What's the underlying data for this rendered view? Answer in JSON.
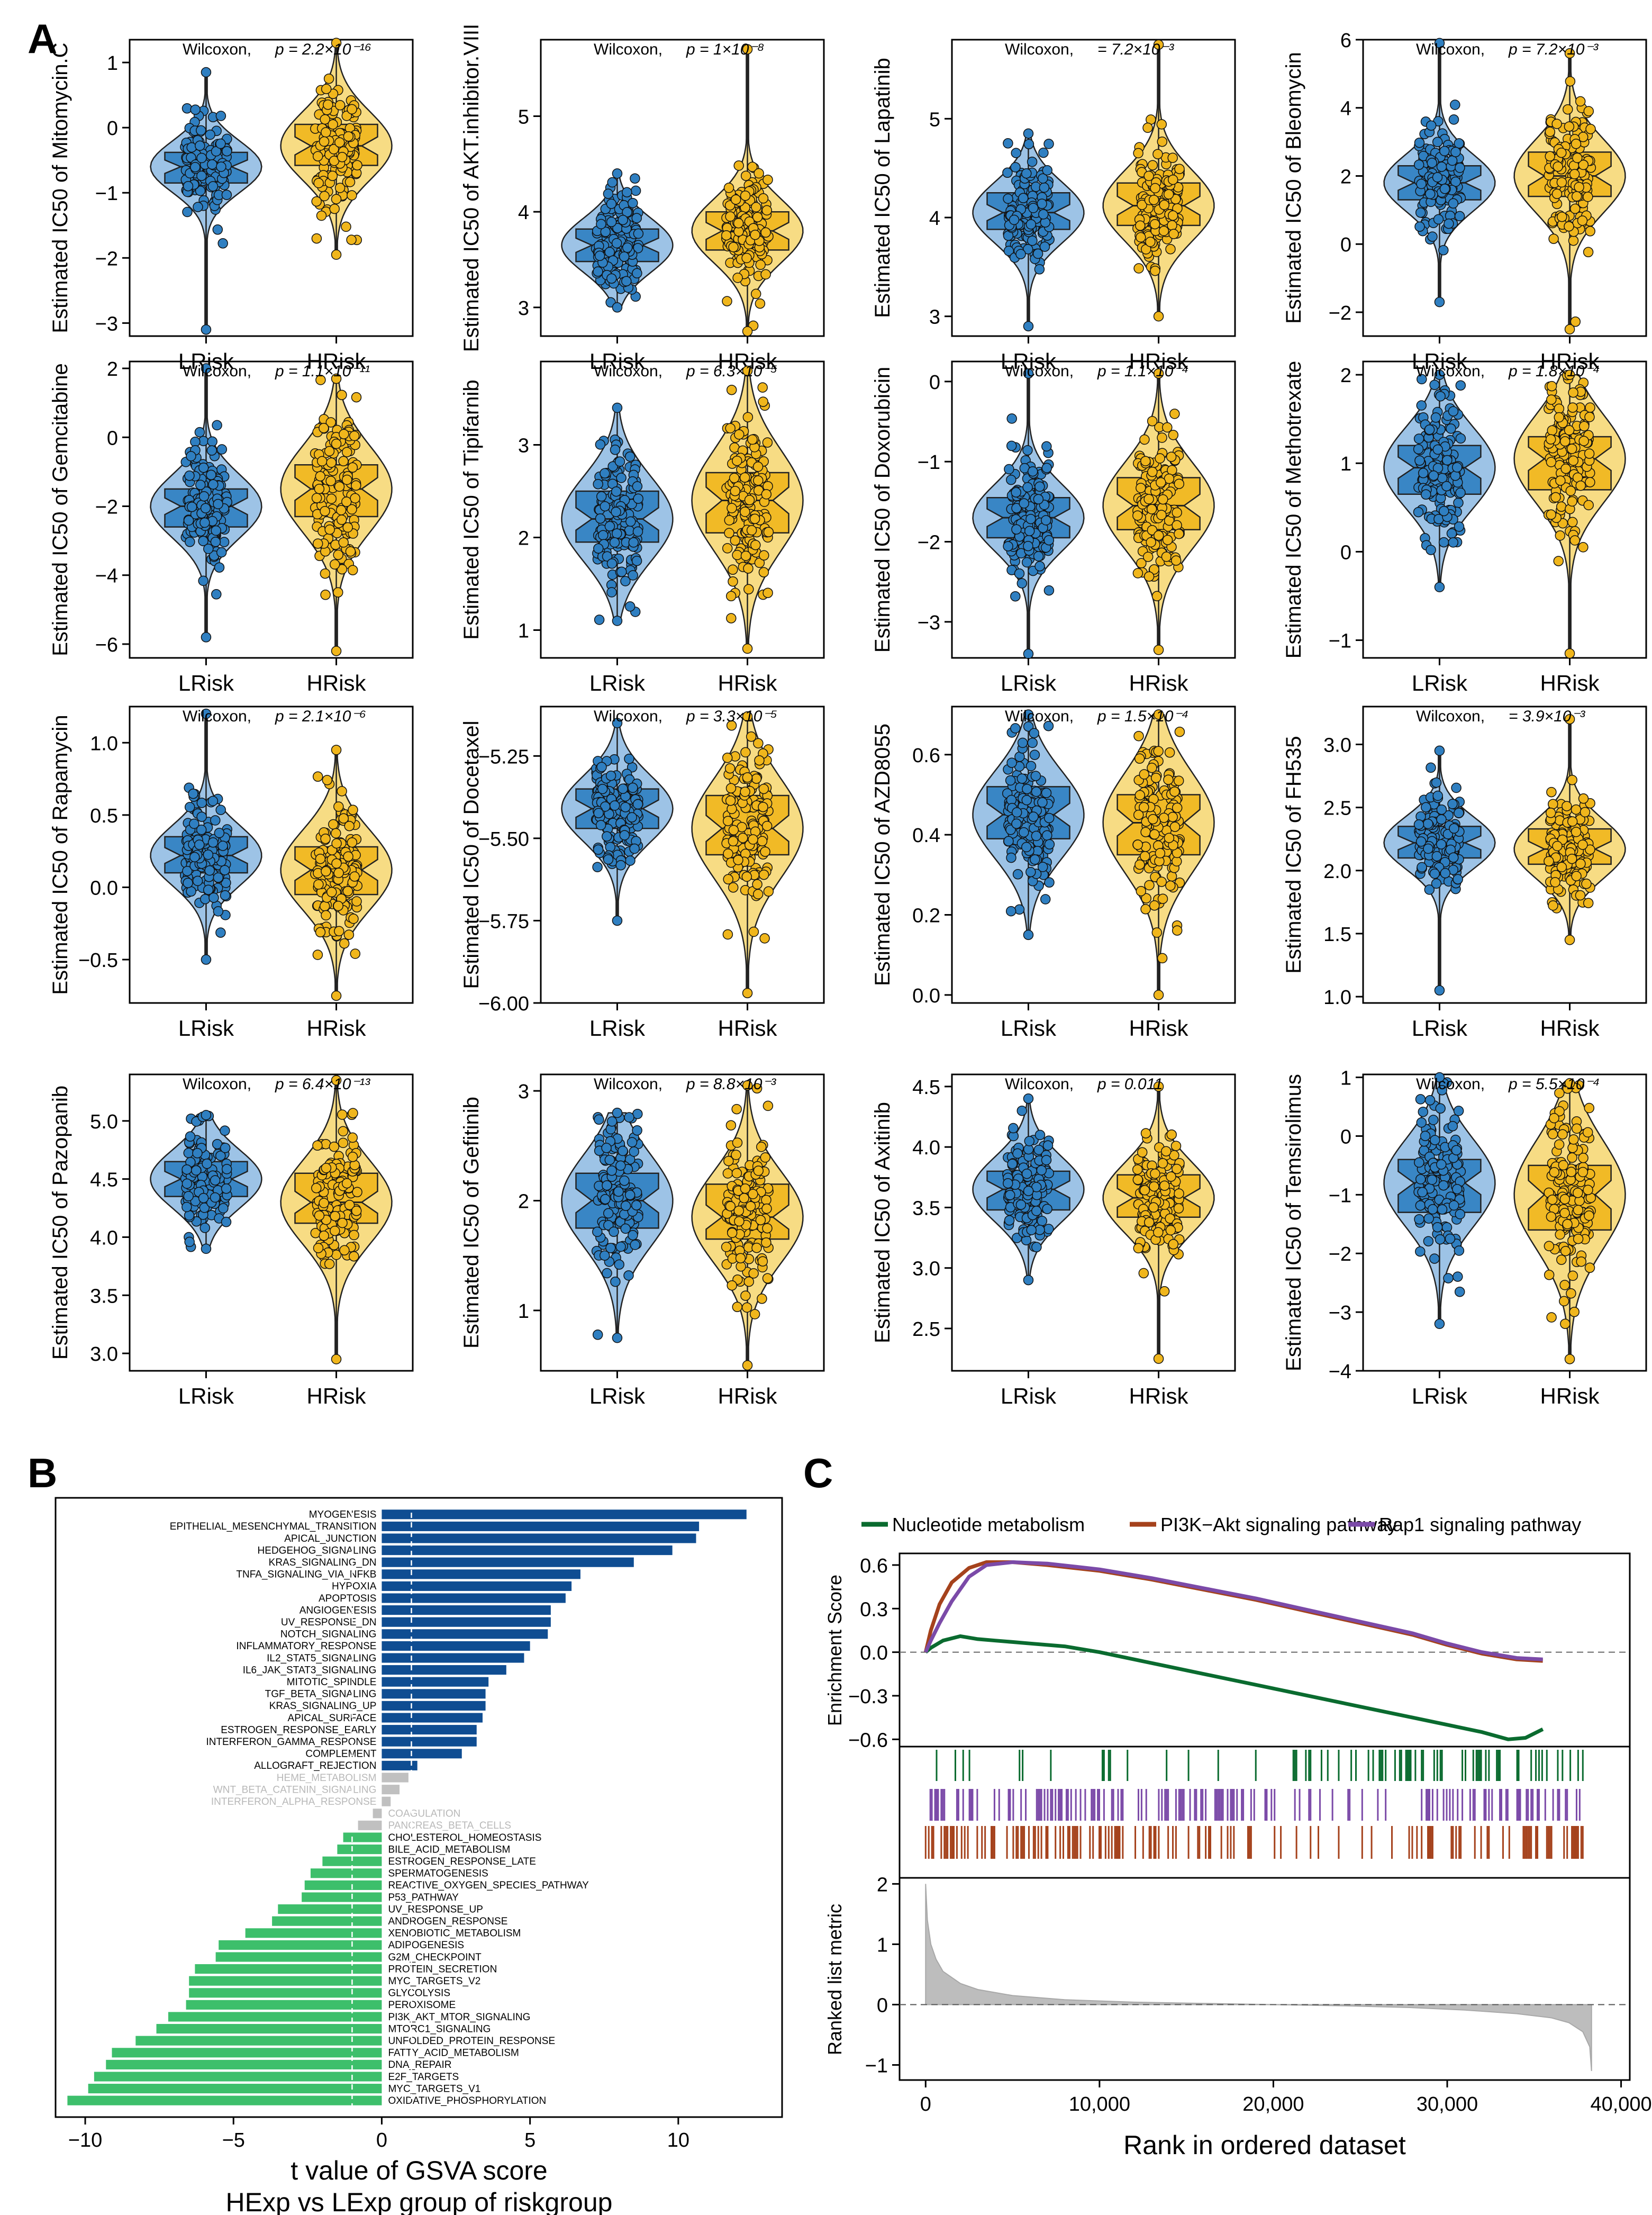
{
  "panel_labels": {
    "a": "A",
    "b": "B",
    "c": "C"
  },
  "colors": {
    "low": "#2f7fc1",
    "high": "#f0b61c",
    "low_fill": "#9dc3e6",
    "high_fill": "#f7dc84",
    "up_bar": "#0f4d92",
    "down_bar": "#3dbf6b",
    "ns_bar": "#c0c0c0",
    "gsea_nucleotide": "#0a6b2f",
    "gsea_pi3k": "#a5421c",
    "gsea_rap1": "#7b4aa8"
  },
  "chart_data": [
    {
      "type": "violin-box",
      "drug": "Mitomycin.C",
      "ylabel": "Estimated IC50 of Mitomycin.C",
      "ylim": [
        -3.2,
        1.35
      ],
      "yticks": [
        -3,
        -2,
        -1,
        0,
        1
      ],
      "categories": [
        "LRisk",
        "HRisk"
      ],
      "test": "Wilcoxon,",
      "pvalue": "p = 2.2×10⁻¹⁶",
      "low": {
        "q1": -0.85,
        "median": -0.6,
        "q3": -0.38,
        "min": -3.1,
        "max": 0.85
      },
      "high": {
        "q1": -0.58,
        "median": -0.28,
        "q3": 0.05,
        "min": -1.95,
        "max": 1.3
      }
    },
    {
      "type": "violin-box",
      "drug": "AKT.inhibitor.VIII",
      "ylabel": "Estimated IC50 of AKT.inhibitor.VIII",
      "ylim": [
        2.7,
        5.8
      ],
      "yticks": [
        3,
        4,
        5
      ],
      "categories": [
        "LRisk",
        "HRisk"
      ],
      "test": "Wilcoxon,",
      "pvalue": "p = 1×10⁻⁸",
      "low": {
        "q1": 3.48,
        "median": 3.65,
        "q3": 3.82,
        "min": 3.0,
        "max": 4.4
      },
      "high": {
        "q1": 3.6,
        "median": 3.8,
        "q3": 4.0,
        "min": 2.75,
        "max": 5.7
      }
    },
    {
      "type": "violin-box",
      "drug": "Lapatinib",
      "ylabel": "Estimated IC50 of Lapatinib",
      "ylim": [
        2.8,
        5.8
      ],
      "yticks": [
        3,
        4,
        5
      ],
      "categories": [
        "LRisk",
        "HRisk"
      ],
      "test": "Wilcoxon,",
      "pvalue": "= 7.2×10⁻³",
      "low": {
        "q1": 3.88,
        "median": 4.05,
        "q3": 4.25,
        "min": 2.9,
        "max": 4.85
      },
      "high": {
        "q1": 3.92,
        "median": 4.12,
        "q3": 4.35,
        "min": 3.0,
        "max": 5.75
      }
    },
    {
      "type": "violin-box",
      "drug": "Bleomycin",
      "ylabel": "Estimated IC50 of Bleomycin",
      "ylim": [
        -2.7,
        6.0
      ],
      "yticks": [
        -2,
        0,
        2,
        4,
        6
      ],
      "categories": [
        "LRisk",
        "HRisk"
      ],
      "test": "Wilcoxon,",
      "pvalue": "p = 7.2×10⁻³",
      "low": {
        "q1": 1.3,
        "median": 1.8,
        "q3": 2.3,
        "min": -1.7,
        "max": 5.9
      },
      "high": {
        "q1": 1.4,
        "median": 2.0,
        "q3": 2.7,
        "min": -2.5,
        "max": 5.6
      }
    },
    {
      "type": "violin-box",
      "drug": "Gemcitabine",
      "ylabel": "Estimated IC50 of Gemcitabine",
      "ylim": [
        -6.4,
        2.2
      ],
      "yticks": [
        -6,
        -4,
        -2,
        0,
        2
      ],
      "categories": [
        "LRisk",
        "HRisk"
      ],
      "test": "Wilcoxon,",
      "pvalue": "p = 1.1×10⁻¹¹",
      "low": {
        "q1": -2.6,
        "median": -2.0,
        "q3": -1.5,
        "min": -5.8,
        "max": 2.0
      },
      "high": {
        "q1": -2.3,
        "median": -1.5,
        "q3": -0.8,
        "min": -6.2,
        "max": 1.7
      }
    },
    {
      "type": "violin-box",
      "drug": "Tipifarnib",
      "ylabel": "Estimated IC50 of Tipifarnib",
      "ylim": [
        0.7,
        3.9
      ],
      "yticks": [
        1,
        2,
        3
      ],
      "categories": [
        "LRisk",
        "HRisk"
      ],
      "test": "Wilcoxon,",
      "pvalue": "p = 6.3×10⁻⁵",
      "low": {
        "q1": 1.95,
        "median": 2.2,
        "q3": 2.5,
        "min": 1.1,
        "max": 3.4
      },
      "high": {
        "q1": 2.05,
        "median": 2.4,
        "q3": 2.7,
        "min": 0.8,
        "max": 3.8
      }
    },
    {
      "type": "violin-box",
      "drug": "Doxorubicin",
      "ylabel": "Estimated IC50 of Doxorubicin",
      "ylim": [
        -3.45,
        0.25
      ],
      "yticks": [
        -3,
        -2,
        -1,
        0
      ],
      "categories": [
        "LRisk",
        "HRisk"
      ],
      "test": "Wilcoxon,",
      "pvalue": "p = 1.1×10⁻⁴",
      "low": {
        "q1": -1.95,
        "median": -1.7,
        "q3": -1.45,
        "min": -3.4,
        "max": 0.1
      },
      "high": {
        "q1": -1.85,
        "median": -1.55,
        "q3": -1.2,
        "min": -3.35,
        "max": 0.1
      }
    },
    {
      "type": "violin-box",
      "drug": "Methotrexate",
      "ylabel": "Estimated IC50 of Methotrexate",
      "ylim": [
        -1.2,
        2.15
      ],
      "yticks": [
        -1,
        0,
        1,
        2
      ],
      "categories": [
        "LRisk",
        "HRisk"
      ],
      "test": "Wilcoxon,",
      "pvalue": "p = 1.8×10⁻⁴",
      "low": {
        "q1": 0.65,
        "median": 0.95,
        "q3": 1.2,
        "min": -0.4,
        "max": 2.0
      },
      "high": {
        "q1": 0.7,
        "median": 1.05,
        "q3": 1.3,
        "min": -1.15,
        "max": 2.0
      }
    },
    {
      "type": "violin-box",
      "drug": "Rapamycin",
      "ylabel": "Estimated IC50 of Rapamycin",
      "ylim": [
        -0.8,
        1.25
      ],
      "yticks": [
        -0.5,
        0.0,
        0.5,
        1.0
      ],
      "categories": [
        "LRisk",
        "HRisk"
      ],
      "test": "Wilcoxon,",
      "pvalue": "p = 2.1×10⁻⁶",
      "low": {
        "q1": 0.1,
        "median": 0.22,
        "q3": 0.35,
        "min": -0.5,
        "max": 1.2
      },
      "high": {
        "q1": -0.05,
        "median": 0.12,
        "q3": 0.28,
        "min": -0.75,
        "max": 0.95
      }
    },
    {
      "type": "violin-box",
      "drug": "Docetaxel",
      "ylabel": "Estimated IC50 of Docetaxel",
      "ylim": [
        -6.0,
        -5.1
      ],
      "yticks": [
        -6.0,
        -5.75,
        -5.5,
        -5.25
      ],
      "categories": [
        "LRisk",
        "HRisk"
      ],
      "test": "Wilcoxon,",
      "pvalue": "p = 3.3×10⁻⁵",
      "low": {
        "q1": -5.47,
        "median": -5.41,
        "q3": -5.35,
        "min": -5.75,
        "max": -5.15
      },
      "high": {
        "q1": -5.55,
        "median": -5.47,
        "q3": -5.37,
        "min": -5.97,
        "max": -5.13
      }
    },
    {
      "type": "violin-box",
      "drug": "AZD8055",
      "ylabel": "Estimated IC50 of AZD8055",
      "ylim": [
        -0.02,
        0.72
      ],
      "yticks": [
        0.0,
        0.2,
        0.4,
        0.6
      ],
      "categories": [
        "LRisk",
        "HRisk"
      ],
      "test": "Wilcoxon,",
      "pvalue": "p = 1.5×10⁻⁴",
      "low": {
        "q1": 0.39,
        "median": 0.45,
        "q3": 0.52,
        "min": 0.15,
        "max": 0.7
      },
      "high": {
        "q1": 0.35,
        "median": 0.43,
        "q3": 0.5,
        "min": 0.0,
        "max": 0.7
      }
    },
    {
      "type": "violin-box",
      "drug": "FH535",
      "ylabel": "Estimated IC50 of FH535",
      "ylim": [
        0.95,
        3.3
      ],
      "yticks": [
        1.0,
        1.5,
        2.0,
        2.5,
        3.0
      ],
      "categories": [
        "LRisk",
        "HRisk"
      ],
      "test": "Wilcoxon,",
      "pvalue": "= 3.9×10⁻³",
      "low": {
        "q1": 2.1,
        "median": 2.22,
        "q3": 2.35,
        "min": 1.05,
        "max": 2.95
      },
      "high": {
        "q1": 2.05,
        "median": 2.17,
        "q3": 2.33,
        "min": 1.45,
        "max": 3.2
      }
    },
    {
      "type": "violin-box",
      "drug": "Pazopanib",
      "ylabel": "Estimated IC50 of Pazopanib",
      "ylim": [
        2.85,
        5.4
      ],
      "yticks": [
        3.0,
        3.5,
        4.0,
        4.5,
        5.0
      ],
      "categories": [
        "LRisk",
        "HRisk"
      ],
      "test": "Wilcoxon,",
      "pvalue": "p = 6.4×10⁻¹³",
      "low": {
        "q1": 4.35,
        "median": 4.5,
        "q3": 4.65,
        "min": 3.9,
        "max": 5.05
      },
      "high": {
        "q1": 4.12,
        "median": 4.3,
        "q3": 4.55,
        "min": 2.95,
        "max": 5.35
      }
    },
    {
      "type": "violin-box",
      "drug": "Gefitinib",
      "ylabel": "Estimated IC50 of Gefitinib",
      "ylim": [
        0.45,
        3.15
      ],
      "yticks": [
        1,
        2,
        3
      ],
      "categories": [
        "LRisk",
        "HRisk"
      ],
      "test": "Wilcoxon,",
      "pvalue": "p = 8.8×10⁻³",
      "low": {
        "q1": 1.75,
        "median": 2.0,
        "q3": 2.25,
        "min": 0.75,
        "max": 2.8
      },
      "high": {
        "q1": 1.65,
        "median": 1.85,
        "q3": 2.15,
        "min": 0.5,
        "max": 3.05
      }
    },
    {
      "type": "violin-box",
      "drug": "Axitinib",
      "ylabel": "Estimated IC50 of Axitinib",
      "ylim": [
        2.15,
        4.6
      ],
      "yticks": [
        2.5,
        3.0,
        3.5,
        4.0,
        4.5
      ],
      "categories": [
        "LRisk",
        "HRisk"
      ],
      "test": "Wilcoxon,",
      "pvalue": "p = 0.011",
      "low": {
        "q1": 3.48,
        "median": 3.65,
        "q3": 3.8,
        "min": 2.9,
        "max": 4.4
      },
      "high": {
        "q1": 3.42,
        "median": 3.58,
        "q3": 3.77,
        "min": 2.25,
        "max": 4.5
      }
    },
    {
      "type": "violin-box",
      "drug": "Temsirolimus",
      "ylabel": "Estimated IC50 of Temsirolimus",
      "ylim": [
        -4.0,
        1.05
      ],
      "yticks": [
        -4,
        -3,
        -2,
        -1,
        0,
        1
      ],
      "categories": [
        "LRisk",
        "HRisk"
      ],
      "test": "Wilcoxon,",
      "pvalue": "p = 5.5×10⁻⁴",
      "low": {
        "q1": -1.3,
        "median": -0.8,
        "q3": -0.4,
        "min": -3.2,
        "max": 1.0
      },
      "high": {
        "q1": -1.6,
        "median": -1.0,
        "q3": -0.5,
        "min": -3.8,
        "max": 0.9
      }
    },
    {
      "type": "bar-horizontal",
      "id": "gsva",
      "xlabel": "t value of GSVA score",
      "xlabel2": "HExp vs LExp group of riskgroup",
      "xlim": [
        -11,
        13.5
      ],
      "xticks": [
        -10,
        -5,
        0,
        5,
        10
      ],
      "threshold": [
        -1,
        1
      ],
      "categories": [
        "MYOGENESIS",
        "EPITHELIAL_MESENCHYMAL_TRANSITION",
        "APICAL_JUNCTION",
        "HEDGEHOG_SIGNALING",
        "KRAS_SIGNALING_DN",
        "TNFA_SIGNALING_VIA_NFKB",
        "HYPOXIA",
        "APOPTOSIS",
        "ANGIOGENESIS",
        "UV_RESPONSE_DN",
        "NOTCH_SIGNALING",
        "INFLAMMATORY_RESPONSE",
        "IL2_STAT5_SIGNALING",
        "IL6_JAK_STAT3_SIGNALING",
        "MITOTIC_SPINDLE",
        "TGF_BETA_SIGNALING",
        "KRAS_SIGNALING_UP",
        "APICAL_SURFACE",
        "ESTROGEN_RESPONSE_EARLY",
        "INTERFERON_GAMMA_RESPONSE",
        "COMPLEMENT",
        "ALLOGRAFT_REJECTION",
        "HEME_METABOLISM",
        "WNT_BETA_CATENIN_SIGNALING",
        "INTERFERON_ALPHA_RESPONSE",
        "COAGULATION",
        "PANCREAS_BETA_CELLS",
        "CHOLESTEROL_HOMEOSTASIS",
        "BILE_ACID_METABOLISM",
        "ESTROGEN_RESPONSE_LATE",
        "SPERMATOGENESIS",
        "REACTIVE_OXYGEN_SPECIES_PATHWAY",
        "P53_PATHWAY",
        "UV_RESPONSE_UP",
        "ANDROGEN_RESPONSE",
        "XENOBIOTIC_METABOLISM",
        "ADIPOGENESIS",
        "G2M_CHECKPOINT",
        "PROTEIN_SECRETION",
        "MYC_TARGETS_V2",
        "GLYCOLYSIS",
        "PEROXISOME",
        "PI3K_AKT_MTOR_SIGNALING",
        "MTORC1_SIGNALING",
        "UNFOLDED_PROTEIN_RESPONSE",
        "FATTY_ACID_METABOLISM",
        "DNA_REPAIR",
        "E2F_TARGETS",
        "MYC_TARGETS_V1",
        "OXIDATIVE_PHOSPHORYLATION"
      ],
      "values": [
        12.3,
        10.7,
        10.6,
        9.8,
        8.5,
        6.7,
        6.4,
        6.2,
        5.7,
        5.7,
        5.6,
        5.0,
        4.8,
        4.2,
        3.6,
        3.5,
        3.5,
        3.4,
        3.2,
        3.2,
        2.7,
        1.2,
        0.9,
        0.6,
        0.3,
        -0.3,
        -0.8,
        -1.3,
        -1.5,
        -2.0,
        -2.4,
        -2.6,
        -2.7,
        -3.5,
        -3.7,
        -4.6,
        -5.5,
        -5.6,
        -6.3,
        -6.5,
        -6.5,
        -6.6,
        -7.2,
        -7.6,
        -8.3,
        -9.1,
        -9.3,
        -9.7,
        -9.9,
        -10.6
      ]
    },
    {
      "type": "line",
      "id": "gsea-es",
      "ylabel": "Enrichment Score",
      "ylim": [
        -0.65,
        0.68
      ],
      "yticks": [
        -0.6,
        -0.3,
        0.0,
        0.3,
        0.6
      ],
      "series": [
        {
          "name": "Nucleotide metabolism",
          "x": [
            0,
            300,
            1000,
            2000,
            3000,
            4000,
            5000,
            6000,
            8000,
            10000,
            12000,
            14000,
            16000,
            18000,
            20000,
            22000,
            24000,
            26000,
            28000,
            30000,
            32000,
            33500,
            34500,
            35500
          ],
          "values": [
            0,
            0.03,
            0.08,
            0.11,
            0.09,
            0.08,
            0.07,
            0.06,
            0.04,
            0.0,
            -0.05,
            -0.1,
            -0.15,
            -0.2,
            -0.25,
            -0.3,
            -0.35,
            -0.4,
            -0.45,
            -0.5,
            -0.55,
            -0.6,
            -0.59,
            -0.53
          ]
        },
        {
          "name": "PI3K−Akt signaling pathway",
          "x": [
            0,
            300,
            800,
            1500,
            2500,
            3500,
            5000,
            7000,
            10000,
            13000,
            16000,
            19000,
            22000,
            25000,
            28000,
            30000,
            32000,
            34000,
            35500
          ],
          "values": [
            0,
            0.15,
            0.33,
            0.48,
            0.58,
            0.62,
            0.62,
            0.6,
            0.56,
            0.5,
            0.43,
            0.36,
            0.28,
            0.2,
            0.12,
            0.05,
            -0.01,
            -0.05,
            -0.06
          ]
        },
        {
          "name": "Rap1 signaling pathway",
          "x": [
            0,
            300,
            800,
            1500,
            2500,
            3500,
            5000,
            7000,
            10000,
            13000,
            16000,
            19000,
            22000,
            25000,
            28000,
            30000,
            32000,
            34000,
            35500
          ],
          "values": [
            0,
            0.08,
            0.2,
            0.35,
            0.52,
            0.6,
            0.62,
            0.61,
            0.57,
            0.51,
            0.44,
            0.37,
            0.29,
            0.21,
            0.13,
            0.06,
            0.0,
            -0.04,
            -0.05
          ]
        }
      ]
    },
    {
      "type": "area",
      "id": "gsea-rank",
      "ylabel": "Ranked list metric",
      "xlabel": "Rank in ordered dataset",
      "xlim": [
        -1500,
        40500
      ],
      "xticks": [
        0,
        10000,
        20000,
        30000,
        40000
      ],
      "xtick_labels": [
        "0",
        "10,000",
        "20,000",
        "30,000",
        "40,000"
      ],
      "ylim": [
        -1.25,
        2.1
      ],
      "yticks": [
        -1,
        0,
        1,
        2
      ],
      "x": [
        0,
        100,
        300,
        600,
        1000,
        2000,
        3000,
        5000,
        8000,
        12000,
        16000,
        20000,
        24000,
        28000,
        31000,
        34000,
        36000,
        37000,
        37800,
        38200,
        38300
      ],
      "values": [
        2.0,
        1.4,
        1.0,
        0.75,
        0.55,
        0.35,
        0.25,
        0.15,
        0.08,
        0.04,
        0.02,
        0.0,
        -0.02,
        -0.05,
        -0.09,
        -0.15,
        -0.22,
        -0.3,
        -0.45,
        -0.7,
        -1.1
      ]
    }
  ]
}
